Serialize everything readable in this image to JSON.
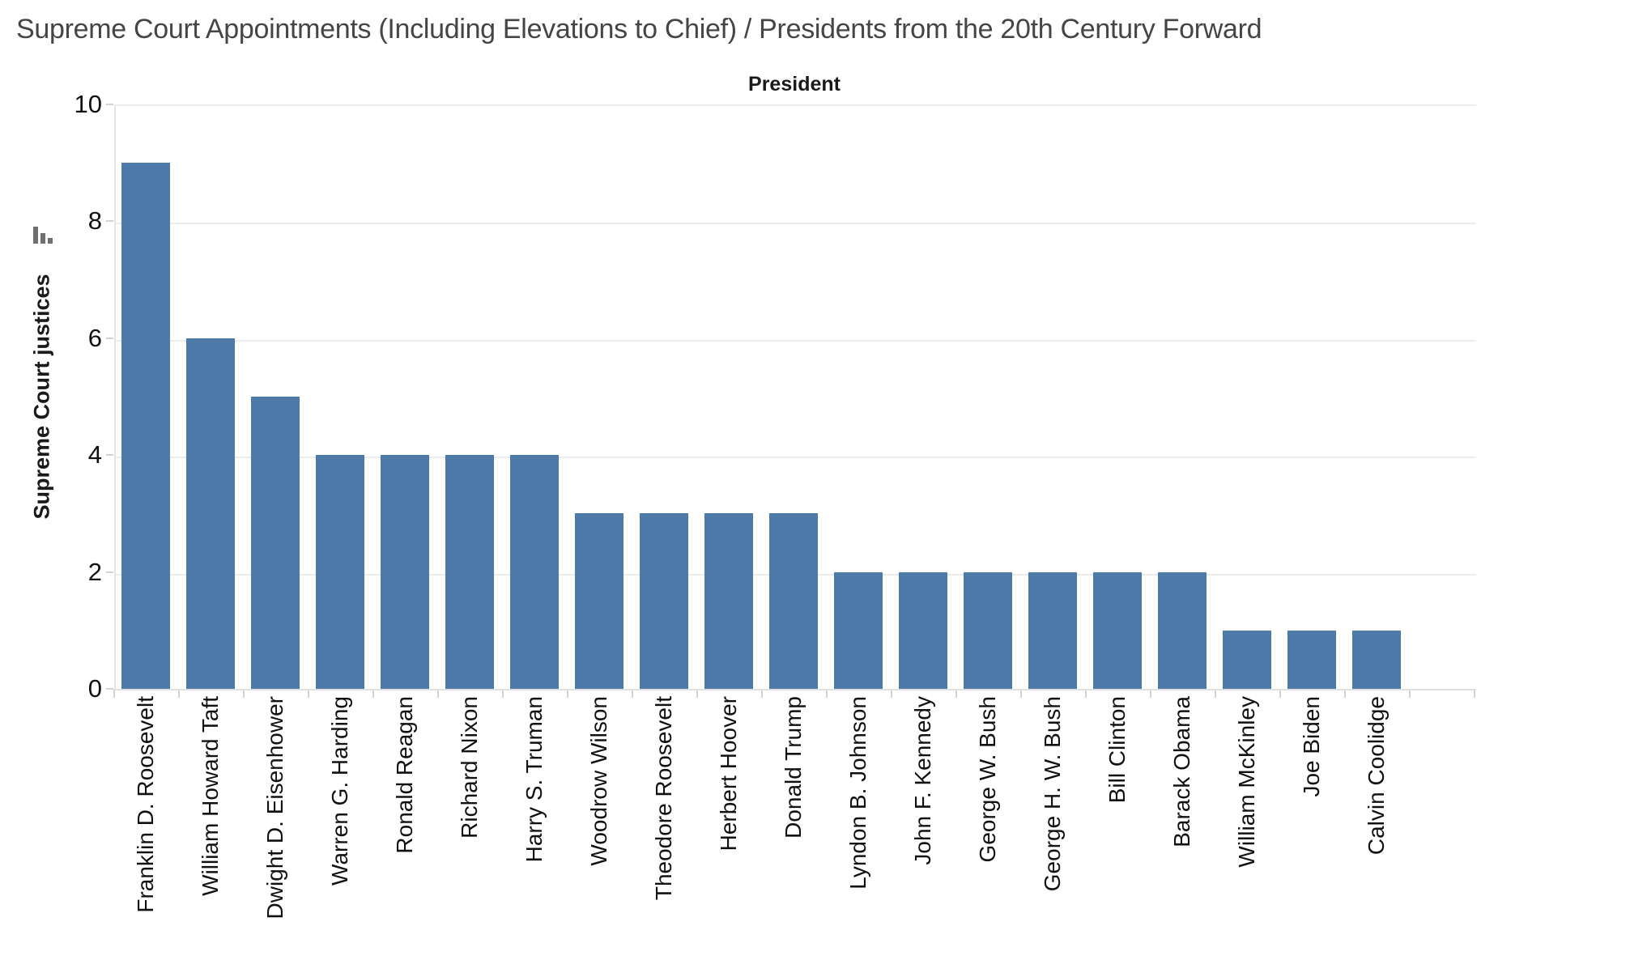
{
  "title": "Supreme Court Appointments (Including Elevations to Chief) / Presidents from the 20th Century Forward",
  "column_header": "President",
  "y_axis": {
    "label": "Supreme Court justices",
    "ticks": [
      0,
      2,
      4,
      6,
      8,
      10
    ]
  },
  "icons": {
    "sort_descending": "sort-descending-bars-icon"
  },
  "colors": {
    "bar": "#4d7aa8",
    "gridline": "#ececec",
    "axis_line": "#e0e0e0",
    "tick_mark": "#d2d2d2",
    "title_text": "#454545",
    "label_text": "#111111",
    "sort_icon": "#6f6f6f"
  },
  "chart_data": {
    "type": "bar",
    "title": "Supreme Court Appointments (Including Elevations to Chief) / Presidents from the 20th Century Forward",
    "xlabel": "President",
    "ylabel": "Supreme Court justices",
    "ylim": [
      0,
      10
    ],
    "grid": true,
    "legend": "none",
    "sort": "descending",
    "categories": [
      "Franklin D. Roosevelt",
      "William Howard Taft",
      "Dwight D. Eisenhower",
      "Warren G. Harding",
      "Ronald Reagan",
      "Richard Nixon",
      "Harry S. Truman",
      "Woodrow Wilson",
      "Theodore Roosevelt",
      "Herbert Hoover",
      "Donald Trump",
      "Lyndon B. Johnson",
      "John F. Kennedy",
      "George W. Bush",
      "George H. W. Bush",
      "Bill Clinton",
      "Barack Obama",
      "William McKinley",
      "Joe Biden",
      "Calvin Coolidge"
    ],
    "values": [
      9,
      6,
      5,
      4,
      4,
      4,
      4,
      3,
      3,
      3,
      3,
      2,
      2,
      2,
      2,
      2,
      2,
      1,
      1,
      1
    ]
  }
}
